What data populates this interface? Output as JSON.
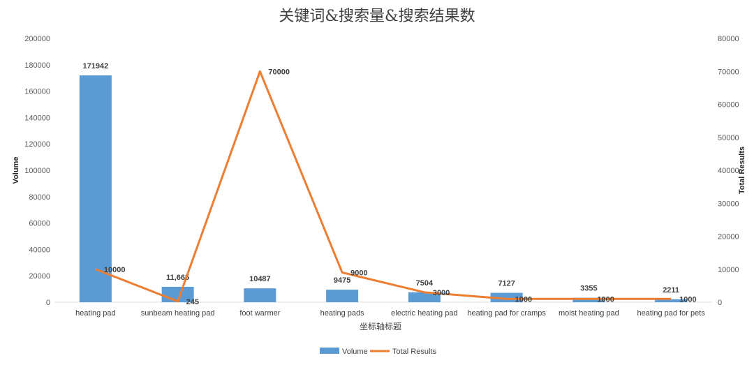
{
  "chart_data": {
    "type": "bar",
    "title": "关键词&搜索量&搜索结果数",
    "xlabel": "坐标轴标题",
    "ylabel": "Volume",
    "y2label": "Total Results",
    "ylim": [
      0,
      200000
    ],
    "y2lim": [
      0,
      80000
    ],
    "yticks": [
      "0",
      "20000",
      "40000",
      "60000",
      "80000",
      "100000",
      "120000",
      "140000",
      "160000",
      "180000",
      "200000"
    ],
    "y2ticks": [
      "0",
      "10000",
      "20000",
      "30000",
      "40000",
      "50000",
      "60000",
      "70000",
      "80000"
    ],
    "categories": [
      "heating pad",
      "sunbeam heating pad",
      "foot warmer",
      "heating pads",
      "electric heating pad",
      "heating pad for cramps",
      "moist heating pad",
      "heating pad for pets"
    ],
    "series": [
      {
        "name": "Volume",
        "type": "bar",
        "axis": "left",
        "color": "#5B9BD5",
        "values": [
          171942,
          11665,
          10487,
          9475,
          7504,
          7127,
          3355,
          2211
        ],
        "labels": [
          "171942",
          "11,665",
          "10487",
          "9475",
          "7504",
          "7127",
          "3355",
          "2211"
        ],
        "label_colors": [
          "#FF0000",
          "#404040",
          "#404040",
          "#404040",
          "#404040",
          "#404040",
          "#404040",
          "#404040"
        ]
      },
      {
        "name": "Total Results",
        "type": "line",
        "axis": "right",
        "color": "#ED7D31",
        "values": [
          10000,
          245,
          70000,
          9000,
          3000,
          1000,
          1000,
          1000
        ],
        "labels": [
          "10000",
          "245",
          "70000",
          "9000",
          "3000",
          "1000",
          "1000",
          "1000"
        ],
        "label_colors": [
          "#404040",
          "#404040",
          "#FF0000",
          "#404040",
          "#404040",
          "#404040",
          "#404040",
          "#404040"
        ]
      }
    ],
    "legend_position": "bottom",
    "grid": false
  }
}
